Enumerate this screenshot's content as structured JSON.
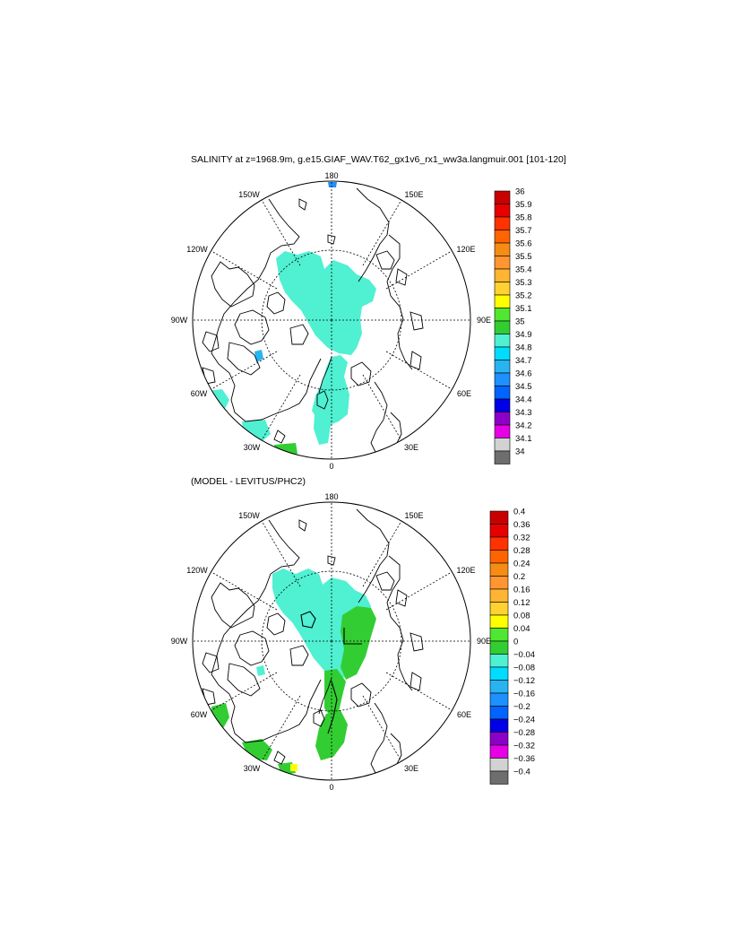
{
  "figure": {
    "title": "SALINITY at z=1968.9m, g.e15.GIAF_WAV.T62_gx1v6_rx1_ww3a.langmuir.001 [101-120]",
    "subtitle": "(MODEL - LEVITUS/PHC2)"
  },
  "map_labels": {
    "lon_180": "180",
    "lon_150w": "150W",
    "lon_150e": "150E",
    "lon_120w": "120W",
    "lon_120e": "120E",
    "lon_90w": "90W",
    "lon_90e": "90E",
    "lon_60w": "60W",
    "lon_60e": "60E",
    "lon_30w": "30W",
    "lon_30e": "30E",
    "lon_0": "0"
  },
  "colors": {
    "background": "#ffffff",
    "coastline": "#000000",
    "graticule": "#000000"
  },
  "colorbars": [
    {
      "name": "salinity",
      "labels": [
        "36",
        "35.9",
        "35.8",
        "35.7",
        "35.6",
        "35.5",
        "35.4",
        "35.3",
        "35.2",
        "35.1",
        "35",
        "34.9",
        "34.8",
        "34.7",
        "34.6",
        "34.5",
        "34.4",
        "34.3",
        "34.2",
        "34.1",
        "34"
      ],
      "colors": [
        "#c80000",
        "#e60000",
        "#ff3200",
        "#ff6400",
        "#f58c14",
        "#ff9632",
        "#ffb432",
        "#ffd232",
        "#ffff00",
        "#50e632",
        "#32cd32",
        "#50f0d2",
        "#00dcff",
        "#28b4f0",
        "#1e90ff",
        "#0064ff",
        "#0000e6",
        "#8c00c8",
        "#e600e6",
        "#d2d2d2",
        "#6e6e6e"
      ]
    },
    {
      "name": "difference",
      "labels": [
        "0.4",
        "0.36",
        "0.32",
        "0.28",
        "0.24",
        "0.2",
        "0.16",
        "0.12",
        "0.08",
        "0.04",
        "0",
        "−0.04",
        "−0.08",
        "−0.12",
        "−0.16",
        "−0.2",
        "−0.24",
        "−0.28",
        "−0.32",
        "−0.36",
        "−0.4"
      ],
      "colors": [
        "#c80000",
        "#e60000",
        "#ff3200",
        "#ff6400",
        "#f58c14",
        "#ff9632",
        "#ffb432",
        "#ffd232",
        "#ffff00",
        "#50e632",
        "#32cd32",
        "#50f0d2",
        "#00dcff",
        "#28b4f0",
        "#1e90ff",
        "#0064ff",
        "#0000e6",
        "#8c00c8",
        "#e600e6",
        "#d2d2d2",
        "#6e6e6e"
      ]
    }
  ],
  "fields": {
    "top": [
      {
        "name": "arctic-basin",
        "value": 34.9,
        "color": "#50f0d2"
      },
      {
        "name": "nordic-seas",
        "value": 34.9,
        "color": "#50f0d2"
      },
      {
        "name": "baffin-bay-patch",
        "value": 34.7,
        "color": "#28b4f0"
      },
      {
        "name": "labrador-sea-patch",
        "value": 34.9,
        "color": "#50f0d2"
      },
      {
        "name": "north-atlantic-patch",
        "value": 34.9,
        "color": "#50f0d2"
      },
      {
        "name": "atlantic-high-patch",
        "value": 35.0,
        "color": "#32cd32"
      },
      {
        "name": "bering-patch",
        "value": 34.6,
        "color": "#1e90ff"
      }
    ],
    "bottom": [
      {
        "name": "arctic-basin",
        "value": 0,
        "color": "#50f0d2"
      },
      {
        "name": "eurasian-positive",
        "value": 0.04,
        "color": "#32cd32"
      },
      {
        "name": "fram-strait-positive",
        "value": 0.04,
        "color": "#32cd32"
      },
      {
        "name": "nordic-positive",
        "value": 0.04,
        "color": "#32cd32"
      },
      {
        "name": "labrador-positive",
        "value": 0.04,
        "color": "#32cd32"
      },
      {
        "name": "atlantic-positive",
        "value": 0.04,
        "color": "#32cd32"
      },
      {
        "name": "atlantic-yellow",
        "value": 0.08,
        "color": "#ffff00"
      },
      {
        "name": "baffin-small",
        "value": 0,
        "color": "#50f0d2"
      }
    ]
  }
}
